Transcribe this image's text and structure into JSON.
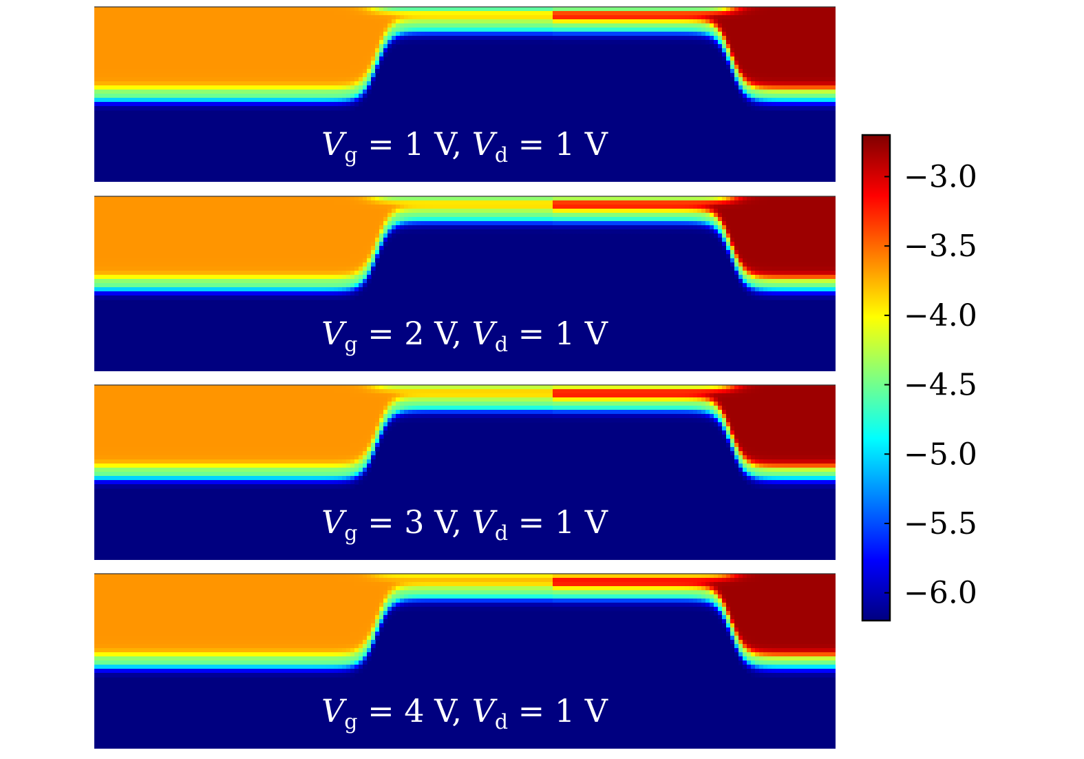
{
  "chart_data": {
    "type": "heatmap",
    "colormap": "jet",
    "colorbar": {
      "vmin": -6.2,
      "vmax": -2.7,
      "ticks": [
        -6.0,
        -5.5,
        -5.0,
        -4.5,
        -4.0,
        -3.5,
        -3.0
      ],
      "tick_labels": [
        "−6.0",
        "−5.5",
        "−5.0",
        "−4.5",
        "−4.0",
        "−3.5",
        "−3.0"
      ]
    },
    "panels": [
      {
        "label": {
          "v": "V",
          "g": "g",
          "eq1": " = 1 V, ",
          "d": "d",
          "eq2": " = 1 V"
        },
        "source_value": -3.65,
        "drain_value": -2.8,
        "channel_value": -6.2,
        "channel_surface_value": -4.7
      },
      {
        "label": {
          "v": "V",
          "g": "g",
          "eq1": " = 2 V, ",
          "d": "d",
          "eq2": " = 1 V"
        },
        "source_value": -3.65,
        "drain_value": -2.8,
        "channel_value": -6.2,
        "channel_surface_value": -4.5
      },
      {
        "label": {
          "v": "V",
          "g": "g",
          "eq1": " = 3 V, ",
          "d": "d",
          "eq2": " = 1 V"
        },
        "source_value": -3.65,
        "drain_value": -2.8,
        "channel_value": -6.2,
        "channel_surface_value": -4.3
      },
      {
        "label": {
          "v": "V",
          "g": "g",
          "eq1": " = 4 V, ",
          "d": "d",
          "eq2": " = 1 V"
        },
        "source_value": -3.65,
        "drain_value": -2.8,
        "channel_value": -6.2,
        "channel_surface_value": -4.0
      }
    ]
  }
}
